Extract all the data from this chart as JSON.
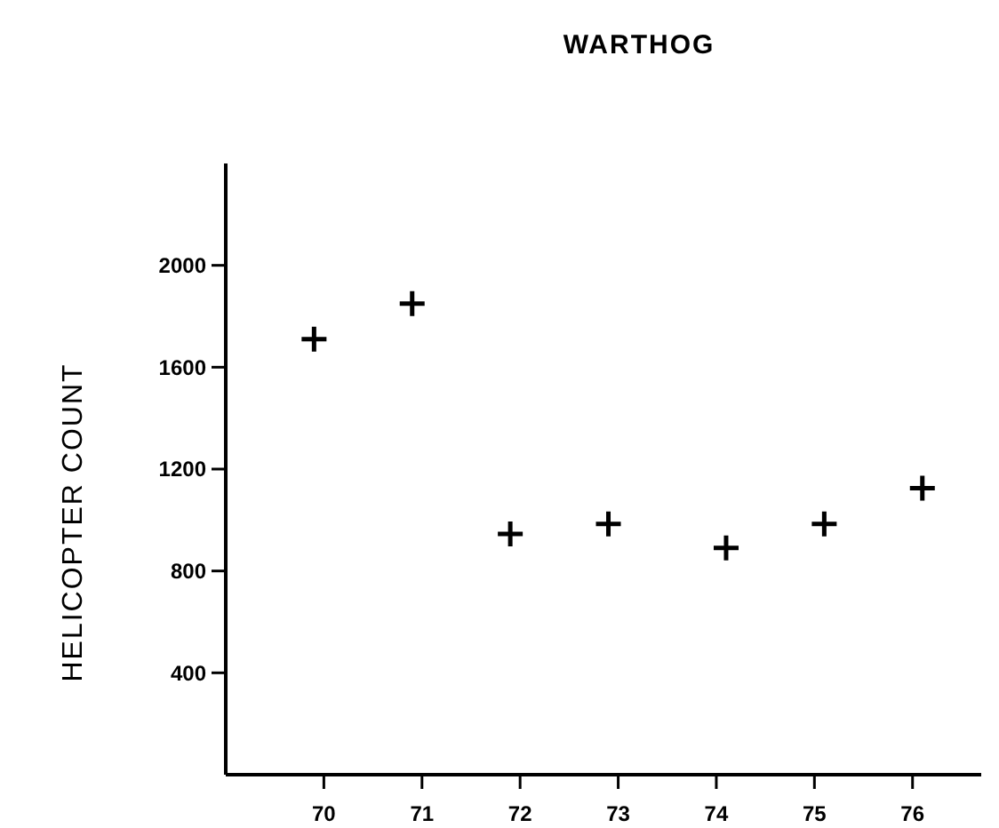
{
  "chart_data": {
    "type": "scatter",
    "title": "WARTHOG",
    "ylabel": "HELICOPTER   COUNT",
    "x": [
      69.9,
      70.9,
      71.9,
      72.9,
      74.1,
      75.1,
      76.1
    ],
    "series": [
      {
        "color": "#000000",
        "values": [
          1710,
          1850,
          945,
          985,
          890,
          985,
          1125
        ]
      }
    ],
    "xlim": [
      69,
      76.7
    ],
    "xticks": [
      70,
      71,
      72,
      73,
      74,
      75,
      76
    ],
    "ylim": [
      0,
      2400
    ],
    "yticks": [
      400,
      800,
      1200,
      1600,
      2000
    ],
    "marker": "cross",
    "grid": false
  }
}
